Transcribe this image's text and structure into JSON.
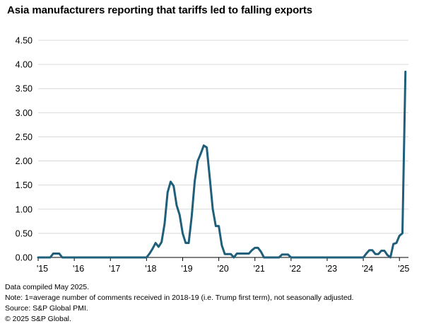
{
  "title": "Asia manufacturers reporting that tariffs led to falling exports",
  "footnotes": {
    "compiled": "Data compiled May 2025.",
    "note": "Note: 1=average number of comments received in 2018-19 (i.e. Trump first term), not seasonally adjusted.",
    "source": "Source: S&P Global PMI.",
    "copyright": "© 2025 S&P Global."
  },
  "chart_data": {
    "type": "line",
    "title": "Asia manufacturers reporting that tariffs led to falling exports",
    "xlabel": "",
    "ylabel": "",
    "ylim": [
      0,
      4.5
    ],
    "xlim": [
      "2015-01",
      "2025-04"
    ],
    "grid": true,
    "legend": "none",
    "color": "#1f5f7a",
    "yticks": [
      "0.00",
      "0.50",
      "1.00",
      "1.50",
      "2.00",
      "2.50",
      "3.00",
      "3.50",
      "4.00",
      "4.50"
    ],
    "xticks": [
      {
        "label": "'15",
        "x": "2015-01"
      },
      {
        "label": "'16",
        "x": "2016-01"
      },
      {
        "label": "'17",
        "x": "2017-01"
      },
      {
        "label": "'18",
        "x": "2018-01"
      },
      {
        "label": "'19",
        "x": "2019-01"
      },
      {
        "label": "'20",
        "x": "2020-01"
      },
      {
        "label": "'21",
        "x": "2021-01"
      },
      {
        "label": "'22",
        "x": "2022-01"
      },
      {
        "label": "'23",
        "x": "2023-01"
      },
      {
        "label": "'24",
        "x": "2024-01"
      },
      {
        "label": "'25",
        "x": "2025-01"
      }
    ],
    "series": [
      {
        "points": [
          [
            "2015-01",
            0.0
          ],
          [
            "2015-05",
            0.0
          ],
          [
            "2015-06",
            0.08
          ],
          [
            "2015-07",
            0.08
          ],
          [
            "2015-08",
            0.08
          ],
          [
            "2015-09",
            0.0
          ],
          [
            "2016-01",
            0.0
          ],
          [
            "2017-01",
            0.0
          ],
          [
            "2018-01",
            0.0
          ],
          [
            "2018-02",
            0.08
          ],
          [
            "2018-03",
            0.18
          ],
          [
            "2018-04",
            0.3
          ],
          [
            "2018-05",
            0.22
          ],
          [
            "2018-06",
            0.32
          ],
          [
            "2018-07",
            0.7
          ],
          [
            "2018-08",
            1.35
          ],
          [
            "2018-09",
            1.57
          ],
          [
            "2018-10",
            1.48
          ],
          [
            "2018-11",
            1.08
          ],
          [
            "2018-12",
            0.88
          ],
          [
            "2019-01",
            0.5
          ],
          [
            "2019-02",
            0.3
          ],
          [
            "2019-03",
            0.3
          ],
          [
            "2019-04",
            0.85
          ],
          [
            "2019-05",
            1.58
          ],
          [
            "2019-06",
            2.0
          ],
          [
            "2019-07",
            2.15
          ],
          [
            "2019-08",
            2.32
          ],
          [
            "2019-09",
            2.28
          ],
          [
            "2019-10",
            1.65
          ],
          [
            "2019-11",
            1.0
          ],
          [
            "2019-12",
            0.65
          ],
          [
            "2020-01",
            0.65
          ],
          [
            "2020-02",
            0.25
          ],
          [
            "2020-03",
            0.07
          ],
          [
            "2020-04",
            0.07
          ],
          [
            "2020-05",
            0.07
          ],
          [
            "2020-06",
            0.0
          ],
          [
            "2020-07",
            0.08
          ],
          [
            "2020-08",
            0.08
          ],
          [
            "2020-09",
            0.08
          ],
          [
            "2020-10",
            0.08
          ],
          [
            "2020-11",
            0.08
          ],
          [
            "2020-12",
            0.15
          ],
          [
            "2021-01",
            0.2
          ],
          [
            "2021-02",
            0.2
          ],
          [
            "2021-03",
            0.12
          ],
          [
            "2021-04",
            0.0
          ],
          [
            "2021-09",
            0.0
          ],
          [
            "2021-10",
            0.06
          ],
          [
            "2021-11",
            0.06
          ],
          [
            "2021-12",
            0.06
          ],
          [
            "2022-01",
            0.0
          ],
          [
            "2023-01",
            0.0
          ],
          [
            "2024-01",
            0.0
          ],
          [
            "2024-02",
            0.08
          ],
          [
            "2024-03",
            0.15
          ],
          [
            "2024-04",
            0.15
          ],
          [
            "2024-05",
            0.07
          ],
          [
            "2024-06",
            0.07
          ],
          [
            "2024-07",
            0.14
          ],
          [
            "2024-08",
            0.14
          ],
          [
            "2024-09",
            0.05
          ],
          [
            "2024-10",
            0.0
          ],
          [
            "2024-11",
            0.28
          ],
          [
            "2024-12",
            0.3
          ],
          [
            "2025-01",
            0.45
          ],
          [
            "2025-02",
            0.5
          ],
          [
            "2025-03",
            3.85
          ]
        ]
      }
    ]
  }
}
